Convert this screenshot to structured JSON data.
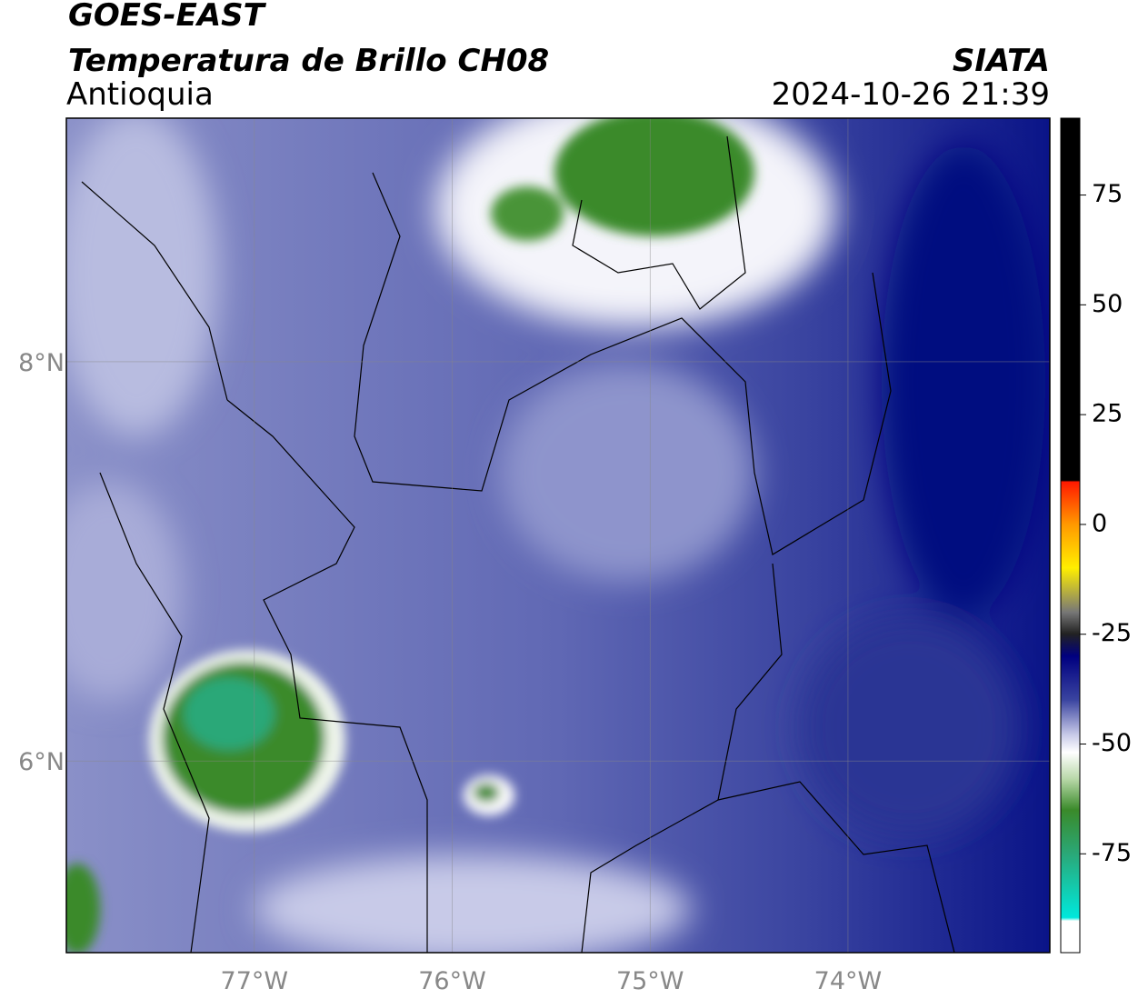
{
  "header": {
    "title": "GOES-EAST",
    "subtitle": "Temperatura de Brillo CH08",
    "region": "Antioquia",
    "source": "SIATA",
    "timestamp": "2024-10-26 21:39"
  },
  "map": {
    "lonlim": [
      -77.95,
      -72.98
    ],
    "latlim": [
      5.04,
      9.22
    ],
    "lon_ticks": [
      {
        "value": -77,
        "label": "77°W"
      },
      {
        "value": -76,
        "label": "76°W"
      },
      {
        "value": -75,
        "label": "75°W"
      },
      {
        "value": -74,
        "label": "74°W"
      }
    ],
    "lat_ticks": [
      {
        "value": 8,
        "label": "8°N"
      },
      {
        "value": 6,
        "label": "6°N"
      }
    ]
  },
  "colorbar": {
    "lim": [
      -97.5,
      92.5
    ],
    "ticks": [
      75,
      50,
      25,
      0,
      -25,
      -50,
      -75
    ]
  }
}
